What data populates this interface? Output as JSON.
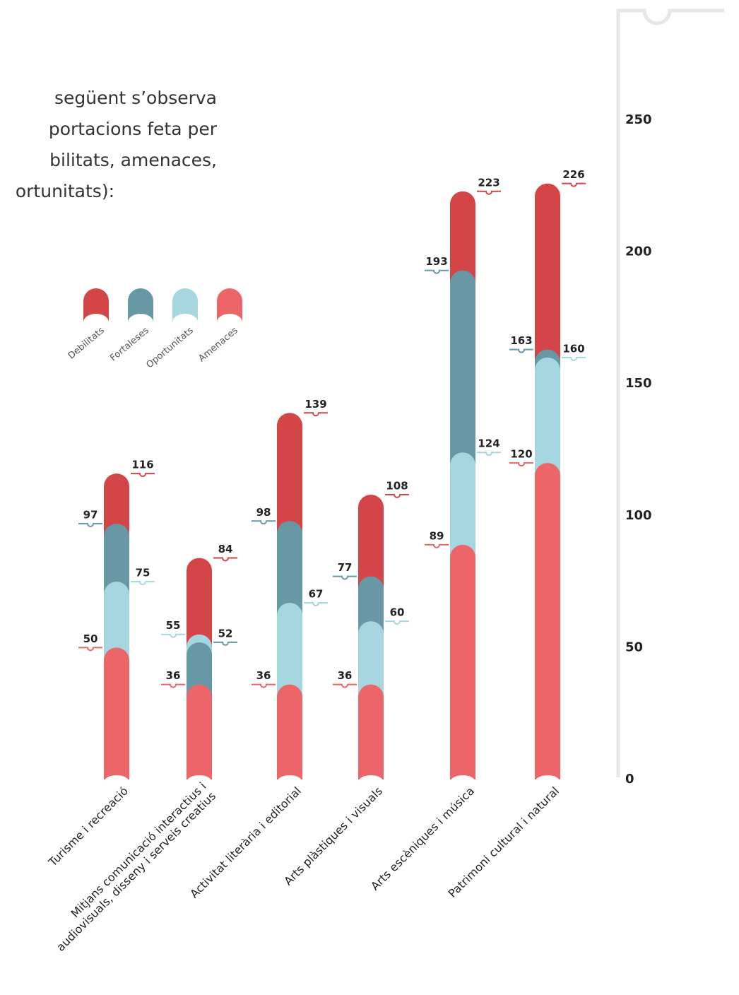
{
  "intro": [
    "següent  s’observa",
    "portacions feta per",
    "bilitats, amenaces,",
    "ortunitats):"
  ],
  "chart_data": {
    "type": "bar",
    "categories": [
      "Turisme i recreació",
      "Mitjans comunicació interactius i\naudiovisuals, disseny i serveis creatius",
      "Activitat literària i editorial",
      "Arts plàstiques i visuals",
      "Arts escèniques i música",
      "Patrimoni cultural i natural"
    ],
    "series": [
      {
        "name": "Debilitats",
        "color": "#d44548",
        "values": [
          116,
          84,
          139,
          108,
          223,
          226
        ]
      },
      {
        "name": "Fortaleses",
        "color": "#6897a5",
        "values": [
          97,
          52,
          98,
          77,
          193,
          163
        ]
      },
      {
        "name": "Oportunitats",
        "color": "#a6d6e0",
        "values": [
          75,
          55,
          67,
          60,
          124,
          160
        ]
      },
      {
        "name": "Amenaces",
        "color": "#ec6568",
        "values": [
          50,
          36,
          36,
          36,
          89,
          120
        ]
      }
    ],
    "ylim": [
      0,
      250
    ],
    "yticks": [
      0,
      50,
      100,
      150,
      200,
      250
    ],
    "grid": false
  }
}
